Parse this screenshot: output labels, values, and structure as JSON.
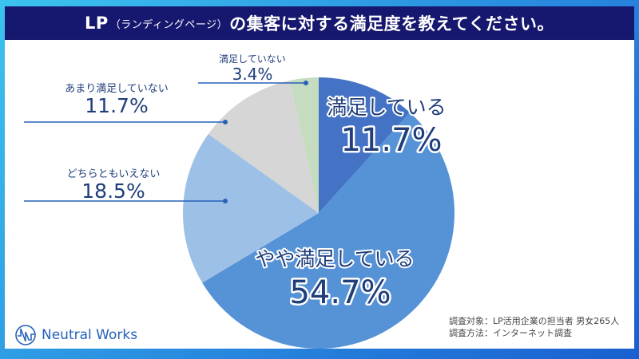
{
  "chart_data": {
    "type": "pie",
    "title": "LP（ランディングページ）の集客に対する満足度を教えてください。",
    "title_parts": {
      "main_a": "LP",
      "paren": "（ランディングページ）",
      "main_b": "の集客に対する満足度を教えてください。"
    },
    "start": "12 o'clock, clockwise",
    "slices": [
      {
        "label": "満足している",
        "value": 11.7,
        "display": "11.7%",
        "color": "#4473c5"
      },
      {
        "label": "やや満足している",
        "value": 54.7,
        "display": "54.7%",
        "color": "#5592d6"
      },
      {
        "label": "どちらともいえない",
        "value": 18.5,
        "display": "18.5%",
        "color": "#9dc0e6"
      },
      {
        "label": "あまり満足していない",
        "value": 11.7,
        "display": "11.7%",
        "color": "#d6d6d6"
      },
      {
        "label": "満足していない",
        "value": 3.4,
        "display": "3.4%",
        "color": "#c6dcc1"
      }
    ]
  },
  "notes": {
    "target": "調査対象：LP活用企業の担当者  男女265人",
    "method": "調査方法：インターネット調査"
  },
  "logo": {
    "text": "Neutral Works"
  },
  "colors": {
    "title_bg": "#16176e",
    "text": "#1f3e7a",
    "frame": "#2a8fe0"
  }
}
